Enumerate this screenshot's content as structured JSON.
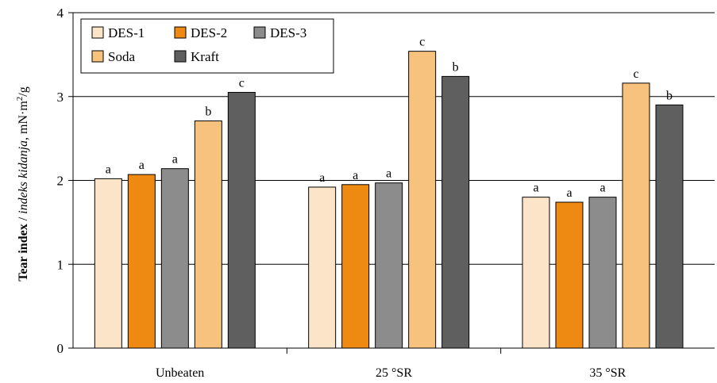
{
  "chart_data": {
    "type": "bar",
    "categories": [
      "Unbeaten",
      "25 °SR",
      "35 °SR"
    ],
    "ylim": [
      0,
      4
    ],
    "yticks": [
      "0",
      "1",
      "2",
      "3",
      "4"
    ],
    "grid": true,
    "legend_position": "top-left",
    "ylabel": {
      "bold": "Tear index",
      "sep": " / ",
      "italic": "indeks kidanja",
      "unit": ", mN·m",
      "unit_sup": "2",
      "unit_end": "/g"
    },
    "series": [
      {
        "name": "DES-1",
        "color": "#FCE4C8",
        "values": [
          2.02,
          1.92,
          1.8
        ],
        "labels": [
          "a",
          "a",
          "a"
        ]
      },
      {
        "name": "DES-2",
        "color": "#EE8A12",
        "values": [
          2.07,
          1.95,
          1.74
        ],
        "labels": [
          "a",
          "a",
          "a"
        ]
      },
      {
        "name": "DES-3",
        "color": "#8C8C8C",
        "values": [
          2.14,
          1.97,
          1.8
        ],
        "labels": [
          "a",
          "a",
          "a"
        ]
      },
      {
        "name": "Soda",
        "color": "#F7C27E",
        "values": [
          2.71,
          3.54,
          3.16
        ],
        "labels": [
          "b",
          "c",
          "c"
        ]
      },
      {
        "name": "Kraft",
        "color": "#5F5F5F",
        "values": [
          3.05,
          3.24,
          2.9
        ],
        "labels": [
          "c",
          "b",
          "b"
        ]
      }
    ]
  }
}
